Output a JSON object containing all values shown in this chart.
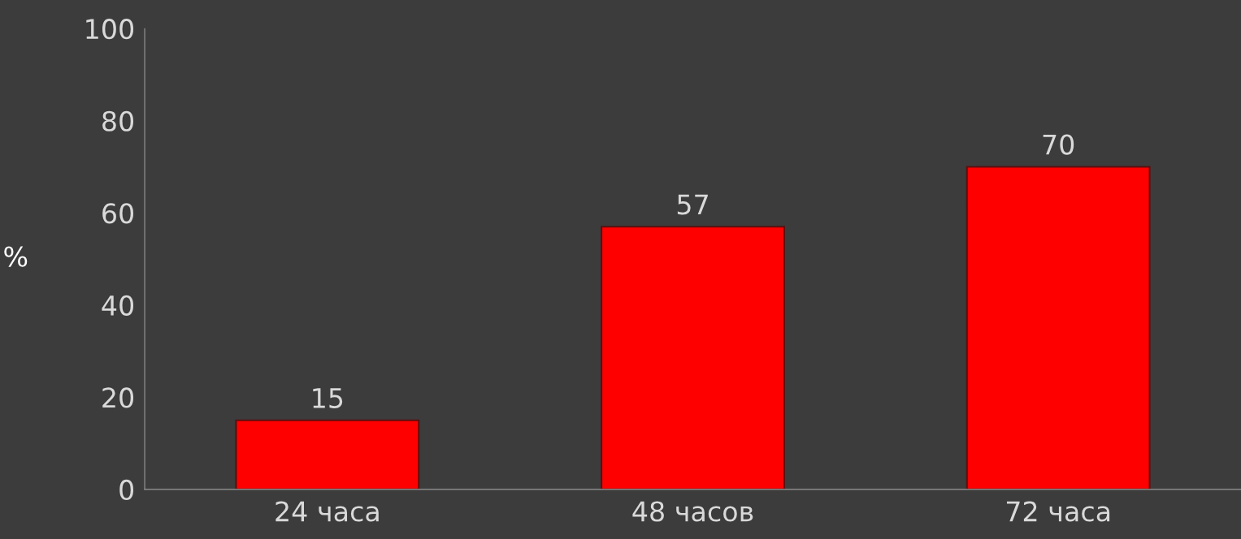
{
  "chart_data": {
    "type": "bar",
    "ylabel": "%",
    "categories": [
      "24 часа",
      "48 часов",
      "72 часа"
    ],
    "values": [
      15,
      57,
      70
    ],
    "color": "#ff0000",
    "ylim": [
      0,
      100
    ],
    "yticks": [
      0,
      20,
      40,
      60,
      80,
      100
    ],
    "data_labels": true,
    "grid": false,
    "legend": false
  }
}
